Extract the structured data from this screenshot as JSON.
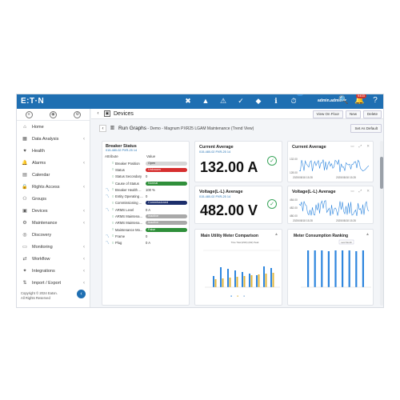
{
  "topbar": {
    "logo": "E:T·N",
    "icons": [
      {
        "name": "alarm-critical-icon",
        "glyph": "✖",
        "badge": "17",
        "badge_color": "#d0342c"
      },
      {
        "name": "alarm-high-icon",
        "glyph": "▲",
        "badge": "15",
        "badge_color": "#d0342c"
      },
      {
        "name": "alarm-warning-icon",
        "glyph": "⚠",
        "badge": "",
        "badge_color": "#e2a21b"
      },
      {
        "name": "alarm-medium-icon",
        "glyph": "✓",
        "badge": "1",
        "badge_color": "#2e8bd6"
      },
      {
        "name": "alarm-low-icon",
        "glyph": "◆",
        "badge": "51",
        "badge_color": "#2e8bd6"
      },
      {
        "name": "info-icon",
        "glyph": "ℹ",
        "badge": "1",
        "badge_color": "#2e8bd6"
      },
      {
        "name": "events-icon",
        "glyph": "⏱",
        "badge": "6",
        "badge_color": "#2e8bd6"
      }
    ],
    "user": "admin.admin",
    "user_caret": "⏷",
    "search_glyph": "🔍",
    "notifications_badge": "9403",
    "notifications_glyph": "🔔",
    "help_glyph": "?"
  },
  "sidebar": {
    "items": [
      {
        "name": "home",
        "label": "Home",
        "icon": "⌂",
        "chev": ""
      },
      {
        "name": "data-analysis",
        "label": "Data Analysis",
        "icon": "▦",
        "chev": "‹"
      },
      {
        "name": "health",
        "label": "Health",
        "icon": "♥",
        "chev": ""
      },
      {
        "name": "alarms",
        "label": "Alarms",
        "icon": "🔔",
        "chev": "‹"
      },
      {
        "name": "calendar",
        "label": "Calendar",
        "icon": "▤",
        "chev": ""
      },
      {
        "name": "rights-access",
        "label": "Rights Access",
        "icon": "🔒",
        "chev": "‹"
      },
      {
        "name": "groups",
        "label": "Groups",
        "icon": "⚇",
        "chev": ""
      },
      {
        "name": "devices",
        "label": "Devices",
        "icon": "▣",
        "chev": "‹"
      },
      {
        "name": "maintenance",
        "label": "Maintenance",
        "icon": "⚙",
        "chev": "‹"
      },
      {
        "name": "discovery",
        "label": "Discovery",
        "icon": "◎",
        "chev": ""
      },
      {
        "name": "monitoring",
        "label": "Monitoring",
        "icon": "▭",
        "chev": "‹"
      },
      {
        "name": "workflow",
        "label": "Workflow",
        "icon": "⇄",
        "chev": "‹"
      },
      {
        "name": "integrations",
        "label": "Integrations",
        "icon": "✦",
        "chev": "‹"
      },
      {
        "name": "import-export",
        "label": "Import / Export",
        "icon": "⇅",
        "chev": "‹"
      }
    ],
    "copyright_line1": "Copyright © 2024 Eaton.",
    "copyright_line2": "All Rights Reserved",
    "collapse_glyph": "‹"
  },
  "subheader": {
    "title": "Devices",
    "buttons": [
      "View On Floor",
      "New",
      "Delete"
    ]
  },
  "graphbar": {
    "title": "Run Graphs",
    "subtitle": " - Demo - Magnum PXR25 LGAM Maintenance (Trend View)",
    "default_button": "Set As Default"
  },
  "breaker": {
    "title": "Breaker Status",
    "link": "015-480-02 PXR-25 14",
    "col_attribute": "Attribute",
    "col_value": "Value",
    "rows": [
      {
        "label": "Breaker Position",
        "value": "Open",
        "pill": "#d6d6d6",
        "text_color": "#333",
        "trend": false
      },
      {
        "label": "Status",
        "value": "Unknown",
        "pill": "#d62f2f",
        "text_color": "#fff",
        "trend": false
      },
      {
        "label": "Status Secondary",
        "value": "0",
        "pill": "",
        "text_color": "#333",
        "trend": false
      },
      {
        "label": "Cause of Status",
        "value": "Normal",
        "pill": "#2f8f3a",
        "text_color": "#fff",
        "trend": false
      },
      {
        "label": "Breaker Health ...",
        "value": "100 %",
        "pill": "",
        "text_color": "#333",
        "trend": true
      },
      {
        "label": "Entity Operating ...",
        "value": "0",
        "pill": "",
        "text_color": "#333",
        "trend": true
      },
      {
        "label": "Commissioning ...",
        "value": "Commissioned",
        "pill": "#1c2e6b",
        "text_color": "#fff",
        "trend": false
      },
      {
        "label": "ARMS Level",
        "value": "0 A",
        "pill": "",
        "text_color": "#333",
        "trend": true
      },
      {
        "label": "ARMS Maintena...",
        "value": "Inactive",
        "pill": "#a9a9a9",
        "text_color": "#fff",
        "trend": false
      },
      {
        "label": "ARMS Maintena...",
        "value": "Inactive",
        "pill": "#a9a9a9",
        "text_color": "#fff",
        "trend": false
      },
      {
        "label": "Maintenance Mo...",
        "value": "False",
        "pill": "#2f8f3a",
        "text_color": "#fff",
        "trend": false
      },
      {
        "label": "Frame",
        "value": "0",
        "pill": "",
        "text_color": "#333",
        "trend": true
      },
      {
        "label": "Plug",
        "value": "0 A",
        "pill": "",
        "text_color": "#333",
        "trend": true
      }
    ]
  },
  "current_avg": {
    "title": "Current Average",
    "link": "015-480-02 PXR-25 14",
    "value": "132.00 A"
  },
  "voltage_avg": {
    "title": "Voltage(L-L) Average",
    "link": "015-480-02 PXR-25 14",
    "value": "482.00 V"
  },
  "current_trend": {
    "title": "Current Average",
    "y_labels": [
      "132.00",
      "128.00"
    ],
    "x_labels": [
      "2025/08/18 15:28",
      "2025/08/18 15:28"
    ]
  },
  "voltage_trend": {
    "title": "Voltage(L-L) Average",
    "y_labels": [
      "484.00",
      "482.00",
      "480.00"
    ],
    "x_labels": [
      "2025/08/18 15:28",
      "2025/08/18 15:28"
    ]
  },
  "utility": {
    "title": "Main Utility Meter Comparison",
    "subtitle": "Time Total (kWh) (kW) Peak",
    "legend": [
      "●",
      "●",
      "●"
    ]
  },
  "consumption": {
    "title": "Meter Consumption Ranking",
    "tag": "Last Month"
  },
  "colors": {
    "brand_blue": "#1f6fb2",
    "bar_blue": "#2e86de",
    "bar_gold": "#e0b43a",
    "check_green": "#3aa55b"
  }
}
